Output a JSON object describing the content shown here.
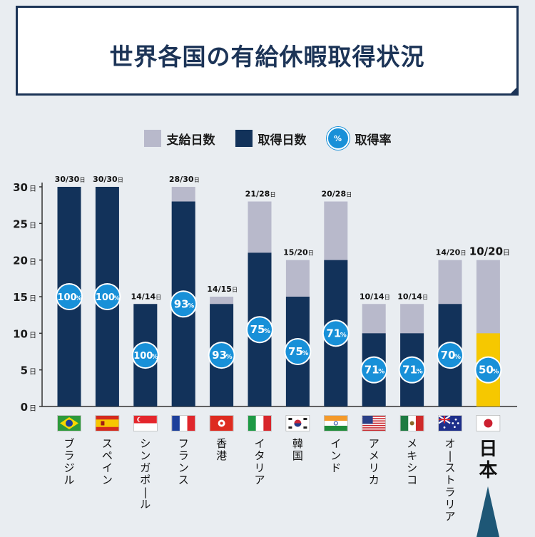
{
  "title": "世界各国の有給休暇取得状況",
  "legend": {
    "granted": "支給日数",
    "taken": "取得日数",
    "rate_badge": "%",
    "rate": "取得率"
  },
  "colors": {
    "granted": "#b8b9cb",
    "taken": "#12325a",
    "japan_taken": "#f6c800",
    "rate_circle": "#1890d8",
    "axis": "#333333",
    "title": "#1c3457",
    "pointer": "#1e5776"
  },
  "chart_data": {
    "type": "bar",
    "ylim": [
      0,
      30
    ],
    "yticks": [
      0,
      5,
      10,
      15,
      20,
      25,
      30
    ],
    "y_unit": "日",
    "categories": [
      "ブラジル",
      "スペイン",
      "シンガポール",
      "フランス",
      "香港",
      "イタリア",
      "韓国",
      "インド",
      "アメリカ",
      "メキシコ",
      "オーストラリア",
      "日本"
    ],
    "flags": [
      "brazil-flag-icon",
      "spain-flag-icon",
      "singapore-flag-icon",
      "france-flag-icon",
      "hong-kong-flag-icon",
      "italy-flag-icon",
      "korea-flag-icon",
      "india-flag-icon",
      "usa-flag-icon",
      "mexico-flag-icon",
      "australia-flag-icon",
      "japan-flag-icon"
    ],
    "series": [
      {
        "name": "支給日数",
        "values": [
          30,
          30,
          14,
          30,
          15,
          28,
          20,
          28,
          14,
          14,
          20,
          20
        ]
      },
      {
        "name": "取得日数",
        "values": [
          30,
          30,
          14,
          28,
          14,
          21,
          15,
          20,
          10,
          10,
          14,
          10
        ]
      }
    ],
    "labels": [
      "30/30",
      "30/30",
      "14/14",
      "28/30",
      "14/15",
      "21/28",
      "15/20",
      "20/28",
      "10/14",
      "10/14",
      "14/20",
      "10/20"
    ],
    "label_unit": "日",
    "rates": [
      "100",
      "100",
      "100",
      "93",
      "93",
      "75",
      "75",
      "71",
      "71",
      "71",
      "70",
      "50"
    ],
    "rate_unit": "%",
    "highlight": "日本"
  }
}
